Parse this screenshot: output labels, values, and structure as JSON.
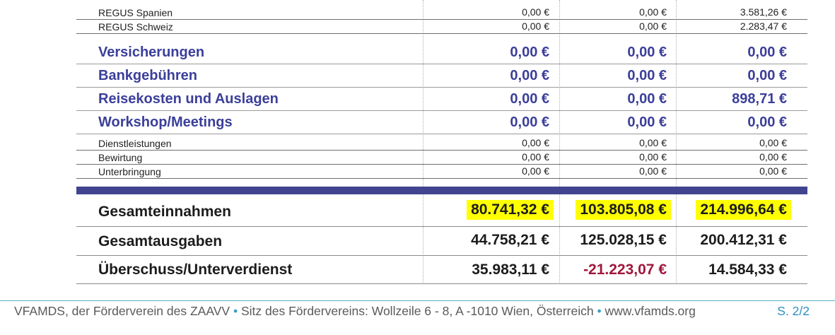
{
  "rows_small_top": [
    {
      "label": "REGUS Spanien",
      "v1": "0,00 €",
      "v2": "0,00 €",
      "v3": "3.581,26 €"
    },
    {
      "label": "REGUS Schweiz",
      "v1": "0,00 €",
      "v2": "0,00 €",
      "v3": "2.283,47 €"
    }
  ],
  "categories": [
    {
      "label": "Versicherungen",
      "v1": "0,00 €",
      "v2": "0,00 €",
      "v3": "0,00 €"
    },
    {
      "label": "Bankgebühren",
      "v1": "0,00 €",
      "v2": "0,00 €",
      "v3": "0,00 €"
    },
    {
      "label": "Reisekosten und Auslagen",
      "v1": "0,00 €",
      "v2": "0,00 €",
      "v3": "898,71 €"
    },
    {
      "label": "Workshop/Meetings",
      "v1": "0,00 €",
      "v2": "0,00 €",
      "v3": "0,00 €"
    }
  ],
  "rows_small_bottom": [
    {
      "label": "Dienstleistungen",
      "v1": "0,00 €",
      "v2": "0,00 €",
      "v3": "0,00 €"
    },
    {
      "label": "Bewirtung",
      "v1": "0,00 €",
      "v2": "0,00 €",
      "v3": "0,00 €"
    },
    {
      "label": "Unterbringung",
      "v1": "0,00 €",
      "v2": "0,00 €",
      "v3": "0,00 €"
    }
  ],
  "totals": [
    {
      "label": "Gesamteinnahmen",
      "v1": "80.741,32 €",
      "v2": "103.805,08 €",
      "v3": "214.996,64 €",
      "highlight": true
    },
    {
      "label": "Gesamtausgaben",
      "v1": "44.758,21 €",
      "v2": "125.028,15 €",
      "v3": "200.412,31 €"
    },
    {
      "label": "Überschuss/Unterverdienst",
      "v1": "35.983,11 €",
      "v2": "-21.223,07 €",
      "v3": "14.584,33 €",
      "v2_negative": true
    }
  ],
  "footer": {
    "part1": "VFAMDS, der Förderverein des ZAAVV",
    "sep": "•",
    "part2": "Sitz des Fördervereins: Wollzeile 6 - 8, A -1010 Wien, Österreich",
    "part3": "www.vfamds.org",
    "page": "S. 2/2"
  },
  "colors": {
    "category_text": "#3b3f9a",
    "separator_bar": "#414590",
    "highlight": "#ffff00",
    "negative": "#a0173c",
    "footer_accent": "#3aa0c0"
  }
}
